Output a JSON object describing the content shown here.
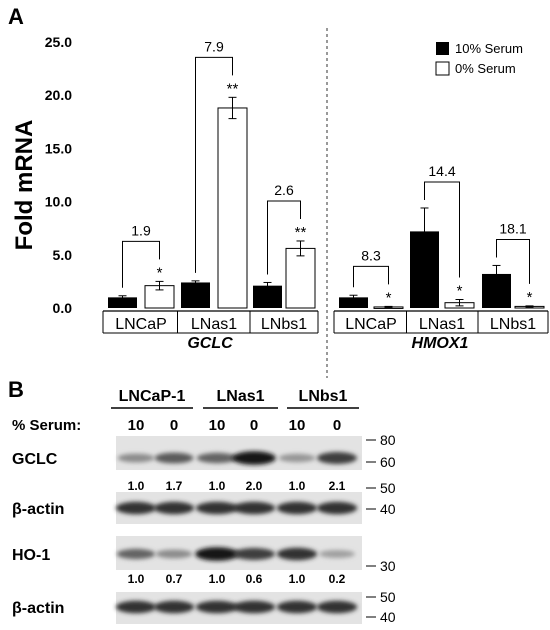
{
  "panel_a": {
    "label": "A",
    "chart_data": {
      "type": "bar",
      "ylabel": "Fold mRNA",
      "ylim": [
        0,
        25
      ],
      "yticks": [
        "0.0",
        "5.0",
        "10.0",
        "15.0",
        "20.0",
        "25.0"
      ],
      "legend": {
        "placement": "top-right",
        "entries": [
          {
            "label": "10% Serum",
            "color": "#000000"
          },
          {
            "label": "0% Serum",
            "color": "#ffffff"
          }
        ]
      },
      "groups": [
        {
          "gene": "GCLC",
          "categories": [
            "LNCaP",
            "LNas1",
            "LNbs1"
          ],
          "series": [
            {
              "name": "10% Serum",
              "values": [
                1.0,
                2.4,
                2.1
              ],
              "errors": [
                0.15,
                0.15,
                0.3
              ]
            },
            {
              "name": "0% Serum",
              "values": [
                2.1,
                18.8,
                5.6
              ],
              "errors": [
                0.4,
                1.0,
                0.7
              ]
            }
          ],
          "fold_labels": [
            "1.9",
            "7.9",
            "2.6"
          ],
          "significance": [
            "*",
            "**",
            "**"
          ]
        },
        {
          "gene": "HMOX1",
          "categories": [
            "LNCaP",
            "LNas1",
            "LNbs1"
          ],
          "series": [
            {
              "name": "10% Serum",
              "values": [
                1.0,
                7.2,
                3.2
              ],
              "errors": [
                0.2,
                2.2,
                0.8
              ]
            },
            {
              "name": "0% Serum",
              "values": [
                0.1,
                0.5,
                0.15
              ],
              "errors": [
                0.05,
                0.3,
                0.05
              ]
            }
          ],
          "fold_labels": [
            "8.3",
            "14.4",
            "18.1"
          ],
          "significance": [
            "*",
            "*",
            "*"
          ]
        }
      ]
    }
  },
  "panel_b": {
    "label": "B",
    "cell_lines": [
      "LNCaP-1",
      "LNas1",
      "LNbs1"
    ],
    "serum_label": "% Serum:",
    "serum_values": [
      "10",
      "0",
      "10",
      "0",
      "10",
      "0"
    ],
    "blots": [
      {
        "name": "GCLC",
        "intensities": [
          0.35,
          0.6,
          0.55,
          0.95,
          0.3,
          0.75
        ],
        "quant": [
          "1.0",
          "1.7",
          "1.0",
          "2.0",
          "1.0",
          "2.1"
        ],
        "markers": [
          "80",
          "60"
        ]
      },
      {
        "name": "β-actin",
        "intensities": [
          0.8,
          0.8,
          0.8,
          0.8,
          0.8,
          0.8
        ],
        "quant": [],
        "markers": [
          "50",
          "40"
        ]
      },
      {
        "name": "HO-1",
        "intensities": [
          0.55,
          0.35,
          0.95,
          0.75,
          0.8,
          0.25
        ],
        "quant": [
          "1.0",
          "0.7",
          "1.0",
          "0.6",
          "1.0",
          "0.2"
        ],
        "markers": [
          "30"
        ]
      },
      {
        "name": "β-actin",
        "intensities": [
          0.8,
          0.8,
          0.8,
          0.8,
          0.8,
          0.8
        ],
        "quant": [],
        "markers": [
          "50",
          "40"
        ]
      }
    ]
  }
}
